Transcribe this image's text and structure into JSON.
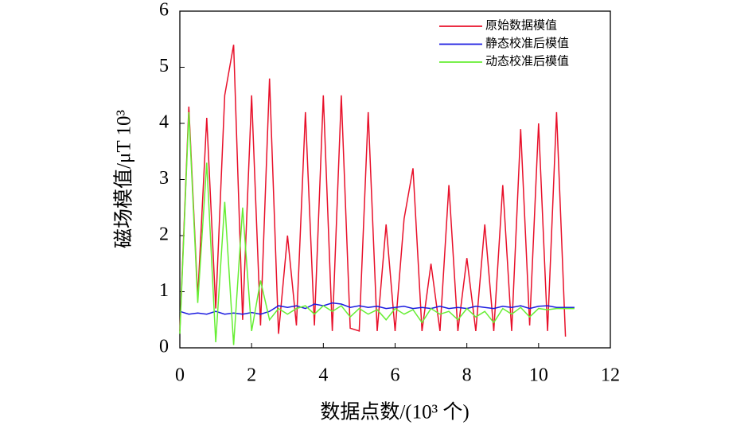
{
  "chart_data": {
    "type": "line",
    "x_label": "数据点数/(10³ 个)",
    "y_label": "磁场模值/μT 10³",
    "x": [
      0,
      0.25,
      0.5,
      0.75,
      1,
      1.25,
      1.5,
      1.75,
      2,
      2.25,
      2.5,
      2.75,
      3,
      3.25,
      3.5,
      3.75,
      4,
      4.25,
      4.5,
      4.75,
      5,
      5.25,
      5.5,
      5.75,
      6,
      6.25,
      6.5,
      6.75,
      7,
      7.25,
      7.5,
      7.75,
      8,
      8.25,
      8.5,
      8.75,
      9,
      9.25,
      9.5,
      9.75,
      10,
      10.25,
      10.5,
      10.75,
      11
    ],
    "series": [
      {
        "name": "原始数据模值",
        "color": "#e8102a",
        "values": [
          0.3,
          4.3,
          0.9,
          4.1,
          0.7,
          4.5,
          5.4,
          0.5,
          4.5,
          0.4,
          4.8,
          0.25,
          2.0,
          0.4,
          4.2,
          0.4,
          4.5,
          0.3,
          4.5,
          0.35,
          0.3,
          4.2,
          0.3,
          2.2,
          0.3,
          2.3,
          3.2,
          0.3,
          1.5,
          0.3,
          2.9,
          0.3,
          1.6,
          0.3,
          2.2,
          0.3,
          2.9,
          0.3,
          3.9,
          0.4,
          4.0,
          0.3,
          4.2,
          0.2,
          null
        ]
      },
      {
        "name": "静态校准后模值",
        "color": "#1a1ae0",
        "values": [
          0.65,
          0.6,
          0.62,
          0.6,
          0.65,
          0.6,
          0.62,
          0.6,
          0.63,
          0.6,
          0.65,
          0.75,
          0.72,
          0.75,
          0.7,
          0.78,
          0.75,
          0.8,
          0.78,
          0.72,
          0.75,
          0.72,
          0.74,
          0.7,
          0.72,
          0.74,
          0.7,
          0.72,
          0.7,
          0.74,
          0.7,
          0.72,
          0.7,
          0.74,
          0.72,
          0.7,
          0.74,
          0.72,
          0.75,
          0.7,
          0.74,
          0.75,
          0.72,
          0.72,
          0.72
        ]
      },
      {
        "name": "动态校准后模值",
        "color": "#66ee33",
        "values": [
          0.25,
          4.2,
          0.8,
          3.3,
          0.1,
          2.6,
          0.05,
          2.5,
          0.3,
          1.2,
          0.5,
          0.7,
          0.6,
          0.7,
          0.75,
          0.6,
          0.75,
          0.65,
          0.75,
          0.55,
          0.7,
          0.6,
          0.68,
          0.5,
          0.7,
          0.6,
          0.68,
          0.45,
          0.7,
          0.6,
          0.65,
          0.5,
          0.7,
          0.55,
          0.65,
          0.45,
          0.7,
          0.6,
          0.72,
          0.55,
          0.7,
          0.68,
          0.7,
          0.7,
          0.7
        ]
      }
    ],
    "xlim": [
      0,
      12
    ],
    "xticks": [
      0,
      2,
      4,
      6,
      8,
      10,
      12
    ],
    "ylim": [
      0,
      6
    ],
    "yticks": [
      0,
      1,
      2,
      3,
      4,
      5,
      6
    ],
    "legend": "upper-right"
  }
}
